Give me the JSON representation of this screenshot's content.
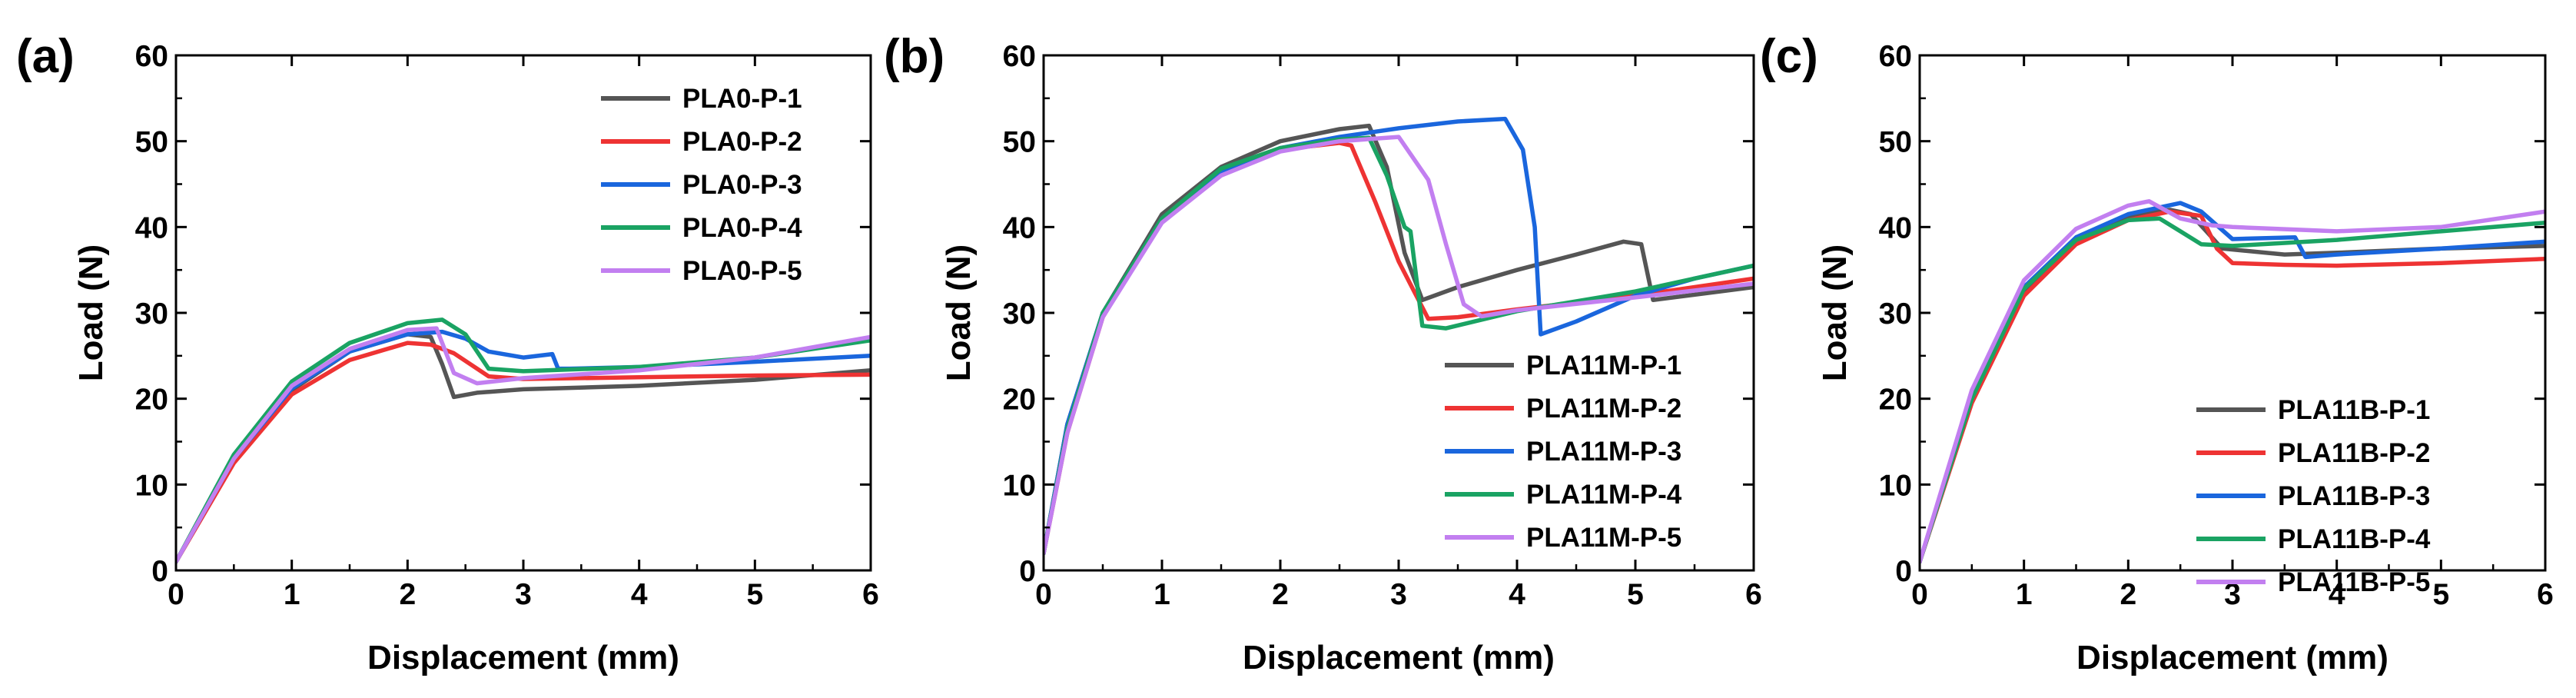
{
  "figure": {
    "background": "#ffffff"
  },
  "chart_data": [
    {
      "type": "line",
      "panel_label": "(a)",
      "xlabel": "Displacement (mm)",
      "ylabel": "Load (N)",
      "xlim": [
        0,
        6
      ],
      "ylim": [
        0,
        60
      ],
      "xticks": [
        0,
        1,
        2,
        3,
        4,
        5,
        6
      ],
      "yticks": [
        0,
        10,
        20,
        30,
        40,
        50,
        60
      ],
      "legend_position": "top-right",
      "series": [
        {
          "name": "PLA0-P-1",
          "color": "#555555",
          "x": [
            0,
            0.5,
            1,
            1.5,
            2.0,
            2.2,
            2.3,
            2.4,
            2.6,
            3,
            4,
            5,
            6
          ],
          "y": [
            1,
            13,
            21,
            25.5,
            27.5,
            27.2,
            24,
            20.2,
            20.7,
            21.1,
            21.5,
            22.2,
            23.3
          ]
        },
        {
          "name": "PLA0-P-2",
          "color": "#ee3333",
          "x": [
            0,
            0.5,
            1,
            1.5,
            2.0,
            2.2,
            2.4,
            2.7,
            3,
            4,
            5,
            6
          ],
          "y": [
            1,
            12.5,
            20.5,
            24.5,
            26.5,
            26.3,
            25.3,
            22.6,
            22.3,
            22.5,
            22.7,
            22.8
          ]
        },
        {
          "name": "PLA0-P-3",
          "color": "#1a66dd",
          "x": [
            0,
            0.5,
            1,
            1.5,
            2.0,
            2.3,
            2.5,
            2.7,
            3.0,
            3.25,
            3.3,
            3.4,
            4,
            5,
            6
          ],
          "y": [
            1,
            13,
            21.2,
            25.5,
            27.5,
            27.8,
            27,
            25.5,
            24.8,
            25.2,
            23.5,
            23.5,
            23.7,
            24.3,
            25.0
          ]
        },
        {
          "name": "PLA0-P-4",
          "color": "#1aa363",
          "x": [
            0,
            0.5,
            1,
            1.5,
            2.0,
            2.3,
            2.5,
            2.7,
            3,
            4,
            5,
            6
          ],
          "y": [
            1,
            13.5,
            22,
            26.5,
            28.8,
            29.2,
            27.5,
            23.5,
            23.2,
            23.7,
            24.8,
            26.8
          ]
        },
        {
          "name": "PLA0-P-5",
          "color": "#c27ff0",
          "x": [
            0,
            0.5,
            1,
            1.5,
            2.0,
            2.25,
            2.4,
            2.6,
            3,
            4,
            5,
            6
          ],
          "y": [
            1,
            13,
            21.5,
            25.8,
            28.0,
            28.2,
            23.0,
            21.8,
            22.4,
            23.3,
            24.8,
            27.2
          ]
        }
      ]
    },
    {
      "type": "line",
      "panel_label": "(b)",
      "xlabel": "Displacement (mm)",
      "ylabel": "Load (N)",
      "xlim": [
        0,
        6
      ],
      "ylim": [
        0,
        60
      ],
      "xticks": [
        0,
        1,
        2,
        3,
        4,
        5,
        6
      ],
      "yticks": [
        0,
        10,
        20,
        30,
        40,
        50,
        60
      ],
      "legend_position": "bottom-right",
      "series": [
        {
          "name": "PLA11M-P-1",
          "color": "#555555",
          "x": [
            0,
            0.2,
            0.5,
            1,
            1.5,
            2,
            2.5,
            2.75,
            2.9,
            3.05,
            3.2,
            3.5,
            4,
            4.5,
            4.9,
            5.05,
            5.15,
            6
          ],
          "y": [
            2,
            17,
            30,
            41.5,
            47,
            50,
            51.4,
            51.8,
            47,
            37,
            31.5,
            33,
            35,
            36.8,
            38.3,
            38,
            31.5,
            33
          ]
        },
        {
          "name": "PLA11M-P-2",
          "color": "#ee3333",
          "x": [
            0,
            0.2,
            0.5,
            1,
            1.5,
            2,
            2.5,
            2.6,
            2.8,
            3.0,
            3.25,
            3.5,
            4,
            5,
            6
          ],
          "y": [
            2,
            16,
            29.5,
            41,
            46.5,
            49,
            49.8,
            49.5,
            43,
            36,
            29.3,
            29.5,
            30.4,
            32,
            34
          ]
        },
        {
          "name": "PLA11M-P-3",
          "color": "#1a66dd",
          "x": [
            0,
            0.2,
            0.5,
            1,
            1.5,
            2,
            2.5,
            3,
            3.5,
            3.9,
            4.05,
            4.15,
            4.2,
            4.5,
            5,
            5.5,
            6
          ],
          "y": [
            2,
            17,
            30,
            41,
            46.5,
            49.2,
            50.5,
            51.5,
            52.3,
            52.6,
            49,
            40,
            27.5,
            29,
            32,
            34,
            35.5
          ]
        },
        {
          "name": "PLA11M-P-4",
          "color": "#1aa363",
          "x": [
            0,
            0.2,
            0.5,
            1,
            1.5,
            2,
            2.5,
            2.75,
            2.9,
            3.05,
            3.1,
            3.2,
            3.4,
            4,
            5,
            6
          ],
          "y": [
            2,
            16.5,
            30,
            41,
            46.8,
            49.2,
            50.2,
            50.4,
            46,
            40,
            39.5,
            28.5,
            28.2,
            30.2,
            32.5,
            35.5
          ]
        },
        {
          "name": "PLA11M-P-5",
          "color": "#c27ff0",
          "x": [
            0,
            0.2,
            0.5,
            1,
            1.5,
            2,
            2.5,
            3.0,
            3.25,
            3.4,
            3.55,
            3.7,
            4,
            5,
            6
          ],
          "y": [
            2,
            16,
            29.5,
            40.5,
            46,
            48.8,
            50,
            50.5,
            45.5,
            38,
            31,
            29.6,
            30.3,
            31.8,
            33.4
          ]
        }
      ]
    },
    {
      "type": "line",
      "panel_label": "(c)",
      "xlabel": "Displacement (mm)",
      "ylabel": "Load (N)",
      "xlim": [
        0,
        6
      ],
      "ylim": [
        0,
        60
      ],
      "xticks": [
        0,
        1,
        2,
        3,
        4,
        5,
        6
      ],
      "yticks": [
        0,
        10,
        20,
        30,
        40,
        50,
        60
      ],
      "legend_position": "bottom-right",
      "series": [
        {
          "name": "PLA11B-P-1",
          "color": "#555555",
          "x": [
            0,
            0.5,
            1,
            1.5,
            2.0,
            2.4,
            2.6,
            2.9,
            3.5,
            4,
            5,
            6
          ],
          "y": [
            1,
            20,
            32.5,
            38.5,
            41.2,
            42,
            41.5,
            37.5,
            36.8,
            37,
            37.5,
            37.8
          ]
        },
        {
          "name": "PLA11B-P-2",
          "color": "#ee3333",
          "x": [
            0,
            0.5,
            1,
            1.5,
            2.0,
            2.4,
            2.7,
            2.85,
            3.0,
            3.5,
            4,
            5,
            6
          ],
          "y": [
            1,
            19.5,
            32,
            38,
            40.8,
            41.8,
            41.3,
            37.5,
            35.8,
            35.6,
            35.5,
            35.8,
            36.3
          ]
        },
        {
          "name": "PLA11B-P-3",
          "color": "#1a66dd",
          "x": [
            0,
            0.5,
            1,
            1.5,
            2.0,
            2.5,
            2.7,
            3.0,
            3.6,
            3.7,
            4,
            5,
            6
          ],
          "y": [
            1,
            20.5,
            33,
            38.8,
            41.5,
            42.8,
            41.8,
            38.6,
            38.8,
            36.5,
            36.8,
            37.5,
            38.3
          ]
        },
        {
          "name": "PLA11B-P-4",
          "color": "#1aa363",
          "x": [
            0,
            0.5,
            1,
            1.5,
            2.0,
            2.3,
            2.5,
            2.7,
            3.0,
            4,
            5,
            6
          ],
          "y": [
            1,
            20,
            32.8,
            38.5,
            40.8,
            41,
            39.5,
            38,
            37.8,
            38.5,
            39.5,
            40.5
          ]
        },
        {
          "name": "PLA11B-P-5",
          "color": "#c27ff0",
          "x": [
            0,
            0.5,
            1,
            1.5,
            2.0,
            2.2,
            2.5,
            2.8,
            3,
            4,
            5,
            6
          ],
          "y": [
            1,
            21,
            33.8,
            39.8,
            42.5,
            43,
            41,
            40.2,
            40,
            39.5,
            40,
            41.8
          ]
        }
      ]
    }
  ]
}
